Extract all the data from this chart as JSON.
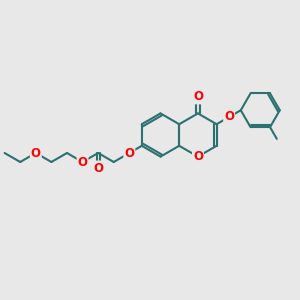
{
  "bg_color": "#e8e8e8",
  "bond_color": "#2d7070",
  "atom_color": "#ff0000",
  "lw": 1.5,
  "dbo": 0.04,
  "figsize": [
    3.0,
    3.0
  ],
  "dpi": 100,
  "xlim": [
    0,
    10
  ],
  "ylim": [
    0,
    10
  ]
}
